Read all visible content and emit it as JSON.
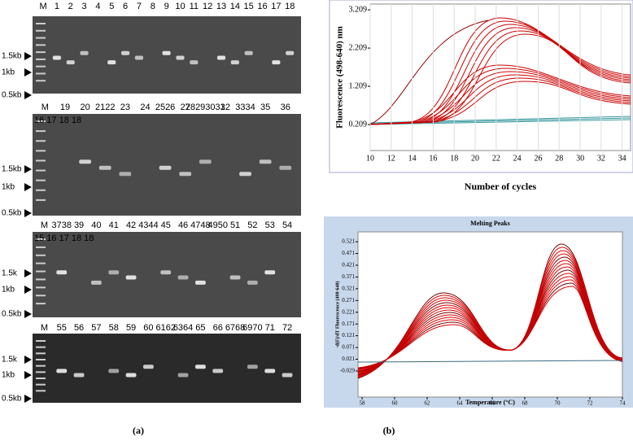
{
  "figure": {
    "panel_a": {
      "label": "(a)",
      "gels": [
        {
          "lanes": [
            "M",
            "1",
            "2",
            "3",
            "4",
            "5",
            "6",
            "7",
            "8",
            "9",
            "10",
            "11",
            "12",
            "13",
            "14",
            "15",
            "16",
            "17",
            "18"
          ],
          "lanes_2": "",
          "markers": [
            "1.5kb",
            "1kb",
            "0.5kb"
          ]
        },
        {
          "lanes": [
            "M",
            "19",
            "20",
            "2122",
            "23",
            "24",
            "2526",
            "27",
            "28293031",
            "32",
            "3334",
            "35",
            "36"
          ],
          "lanes_2": "16 17 18 18",
          "markers": [
            "1.5kb",
            "1kb",
            "0.5kb"
          ]
        },
        {
          "lanes": [
            "M",
            "3738",
            "39",
            "40",
            "41",
            "42",
            "4344",
            "45",
            "46",
            "4748",
            "4950",
            "51",
            "52",
            "53",
            "54"
          ],
          "lanes_2": "15 16 17 18 18",
          "markers": [
            "1.5k",
            "1kb",
            "0.5kb"
          ]
        },
        {
          "lanes": [
            "M",
            "55",
            "56",
            "57",
            "58",
            "59",
            "60",
            "6162",
            "6364",
            "65",
            "66",
            "6768",
            "6970",
            "71",
            "72"
          ],
          "lanes_2": "",
          "markers": [
            "1.5k",
            "1kb",
            "0.5kb"
          ]
        }
      ]
    },
    "panel_b": {
      "label": "(b)"
    }
  },
  "chart_data": [
    {
      "type": "line",
      "y_label": "Fluorescence (498-640) nm",
      "x_label": "Number of cycles",
      "xlim": [
        10,
        34.8
      ],
      "xticks": [
        10,
        12,
        14,
        16,
        18,
        20,
        22,
        24,
        26,
        28,
        30,
        32,
        34
      ],
      "ylim": [
        -0.47,
        3.36
      ],
      "yticks": [
        0.209,
        1.209,
        2.209,
        3.209
      ],
      "grid": true
    },
    {
      "type": "line",
      "title": "Melting Peaks",
      "y_label": "-d(F)/dT Fluorescence (498-640)",
      "x_label": "Temperature (°C)",
      "xlim": [
        57.75,
        74
      ],
      "xticks": [
        58,
        60,
        62,
        64,
        66,
        68,
        70,
        72,
        74
      ],
      "ylim": [
        -0.14,
        0.563
      ],
      "yticks": [
        -0.029,
        0.021,
        0.071,
        0.121,
        0.171,
        0.221,
        0.271,
        0.321,
        0.371,
        0.421,
        0.471,
        0.521
      ],
      "grid": false
    }
  ]
}
